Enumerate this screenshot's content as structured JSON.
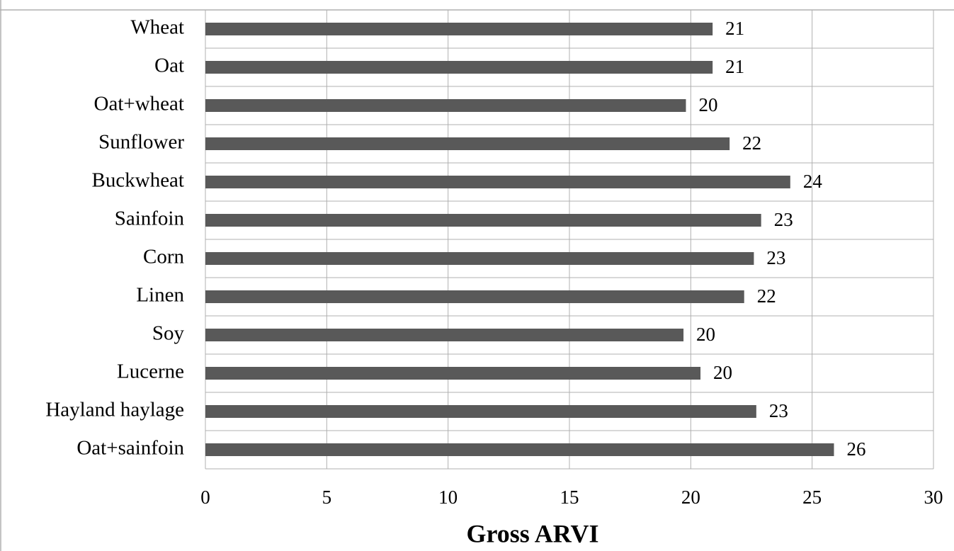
{
  "chart_data": {
    "type": "bar",
    "orientation": "horizontal",
    "xlabel": "Gross ARVI",
    "categories": [
      "Wheat",
      "Oat",
      "Oat+wheat",
      "Sunflower",
      "Buckwheat",
      "Sainfoin",
      "Corn",
      "Linen",
      "Soy",
      "Lucerne",
      "Hayland haylage",
      "Oat+sainfoin"
    ],
    "values": [
      20.9,
      20.9,
      19.8,
      21.6,
      24.1,
      22.9,
      22.6,
      22.2,
      19.7,
      20.4,
      22.7,
      25.9
    ],
    "value_labels": [
      "21",
      "21",
      "20",
      "22",
      "24",
      "23",
      "23",
      "22",
      "20",
      "20",
      "23",
      "26"
    ],
    "color": "#595959",
    "xlim": [
      0,
      30
    ],
    "xticks": [
      0,
      5,
      10,
      15,
      20,
      25,
      30
    ],
    "grid": true
  }
}
